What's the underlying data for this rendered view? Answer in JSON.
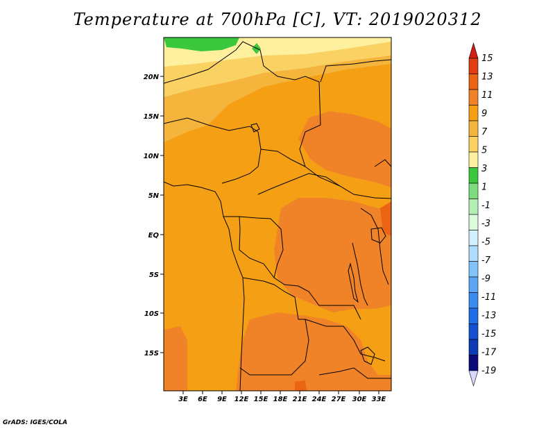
{
  "title": "Temperature at 700hPa [C], VT: 2019020312",
  "credit": "GrADS: IGES/COLA",
  "map": {
    "region": "Central and Southern-Central Africa",
    "lat_labels": [
      "20N",
      "15N",
      "10N",
      "5N",
      "EQ",
      "5S",
      "10S",
      "15S"
    ],
    "lon_labels": [
      "3E",
      "6E",
      "9E",
      "12E",
      "15E",
      "18E",
      "21E",
      "24E",
      "27E",
      "30E",
      "33E"
    ]
  },
  "colorbar": {
    "labels": [
      "15",
      "13",
      "11",
      "9",
      "7",
      "5",
      "3",
      "1",
      "-1",
      "-3",
      "-5",
      "-7",
      "-9",
      "-11",
      "-13",
      "-15",
      "-17",
      "-19"
    ],
    "colors": [
      "#d8d8ff",
      "#0a0a78",
      "#0c3cb4",
      "#1450d2",
      "#1e6ee6",
      "#3c8cf0",
      "#5aa5f5",
      "#82c3fa",
      "#afdcff",
      "#d2f0ff",
      "#dcfadc",
      "#b4f0b4",
      "#7ddc7d",
      "#3cc83c",
      "#fff0a0",
      "#fad264",
      "#f5b43c",
      "#f5a014",
      "#f08228",
      "#eb6414",
      "#e13c14",
      "#d21e14"
    ]
  },
  "chart_data": {
    "type": "heatmap",
    "title": "Temperature at 700hPa [C], VT: 2019020312",
    "variable": "Temperature at 700hPa",
    "units": "C",
    "valid_time": "2019020312",
    "lon_range": [
      0,
      35
    ],
    "lat_range": [
      -20,
      24
    ],
    "levels": [
      -19,
      -17,
      -15,
      -13,
      -11,
      -9,
      -7,
      -5,
      -3,
      -1,
      1,
      3,
      5,
      7,
      9,
      11,
      13,
      15
    ],
    "regions": [
      {
        "area": "northern Sahara edge (~22-24N, 0-12E)",
        "value_range": [
          1,
          3
        ]
      },
      {
        "area": "Sahara/Sahel (15-22N)",
        "value_range": [
          5,
          9
        ]
      },
      {
        "area": "West/Central Africa (5N-15N)",
        "value_range": [
          7,
          11
        ]
      },
      {
        "area": "Gulf of Guinea & Atlantic coast",
        "value_range": [
          9,
          11
        ]
      },
      {
        "area": "Congo Basin / DR Congo",
        "value_range": [
          11,
          13
        ]
      },
      {
        "area": "Chad/Sudan (8-18N, 20-30E)",
        "value_range": [
          11,
          13
        ]
      },
      {
        "area": "Angola/Zambia (10-20S)",
        "value_range": [
          11,
          13
        ]
      },
      {
        "area": "Great Lakes near 33E",
        "value_range": [
          13,
          15
        ]
      }
    ]
  }
}
